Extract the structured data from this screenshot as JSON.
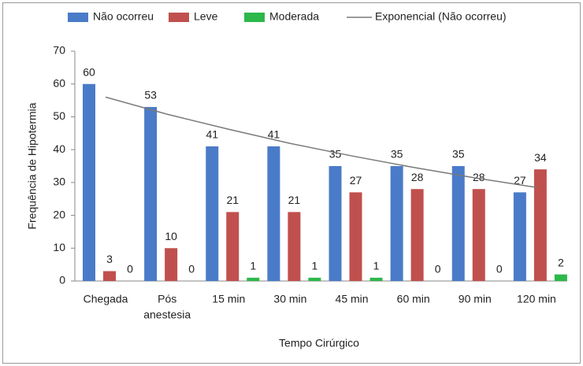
{
  "chart_data": {
    "type": "bar",
    "x_label": "Tempo Cirúrgico",
    "y_label": "Frequência de Hipotermia",
    "categories": [
      "Chegada",
      [
        "Pós",
        "anestesia"
      ],
      "15 min",
      "30 min",
      "45 min",
      "60 min",
      "90 min",
      "120 min"
    ],
    "series": [
      {
        "name": "Não ocorreu",
        "color": "#4a7bc8",
        "values": [
          60,
          53,
          41,
          41,
          35,
          35,
          35,
          27
        ]
      },
      {
        "name": "Leve",
        "color": "#c0504d",
        "values": [
          3,
          10,
          21,
          21,
          27,
          28,
          28,
          34
        ]
      },
      {
        "name": "Moderada",
        "color": "#2db84a",
        "values": [
          0,
          0,
          1,
          1,
          1,
          0,
          0,
          2
        ]
      },
      {
        "name": "Exponencial (Não ocorreu)",
        "type": "line",
        "color": "#7a7a7a",
        "values": [
          56,
          50.8,
          46.2,
          41.9,
          38.1,
          34.6,
          31.4,
          28.5
        ]
      }
    ],
    "ylim": [
      0,
      70
    ],
    "yticks": [
      0,
      10,
      20,
      30,
      40,
      50,
      60,
      70
    ]
  }
}
